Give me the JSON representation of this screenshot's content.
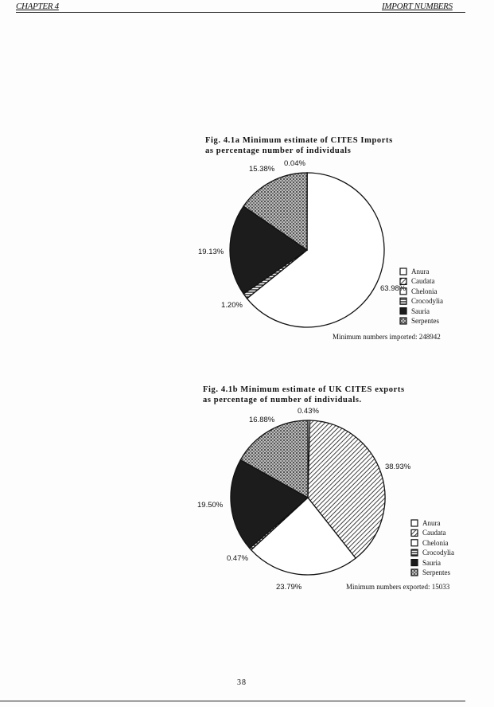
{
  "header": {
    "left": "CHAPTER 4",
    "right": "IMPORT NUMBERS"
  },
  "footer": {
    "page_number": "38"
  },
  "chart_data": [
    {
      "type": "pie",
      "title_line1": "Fig. 4.1a Minimum estimate of CITES Imports",
      "title_line2": "as percentage number of individuals",
      "legend": [
        "Anura",
        "Caudata",
        "Chelonia",
        "Crocodylia",
        "Sauria",
        "Serpentes"
      ],
      "legend_placement": "bottom-right",
      "slices": [
        {
          "category": "Anura",
          "value": 0.04,
          "label": "0.04%"
        },
        {
          "category": "Chelonia",
          "value": 63.98,
          "label": "63.98%"
        },
        {
          "category": "Crocodylia",
          "value": 1.2,
          "label": "1.20%"
        },
        {
          "category": "Sauria",
          "value": 19.13,
          "label": "19.13%"
        },
        {
          "category": "Serpentes",
          "value": 15.38,
          "label": "15.38%"
        }
      ],
      "note": "Minimum numbers imported: 248942"
    },
    {
      "type": "pie",
      "title_line1": "Fig. 4.1b Minimum estimate of UK CITES exports",
      "title_line2": "as percentage of number of individuals.",
      "legend": [
        "Anura",
        "Caudata",
        "Chelonia",
        "Crocodylia",
        "Sauria",
        "Serpentes"
      ],
      "legend_placement": "bottom-right",
      "slices": [
        {
          "category": "Anura",
          "value": 0.43,
          "label": "0.43%"
        },
        {
          "category": "Caudata",
          "value": 38.93,
          "label": "38.93%"
        },
        {
          "category": "Chelonia",
          "value": 23.79,
          "label": "23.79%"
        },
        {
          "category": "Crocodylia",
          "value": 0.47,
          "label": "0.47%"
        },
        {
          "category": "Sauria",
          "value": 19.5,
          "label": "19.50%"
        },
        {
          "category": "Serpentes",
          "value": 16.88,
          "label": "16.88%"
        }
      ],
      "note": "Minimum numbers exported: 15033"
    }
  ]
}
